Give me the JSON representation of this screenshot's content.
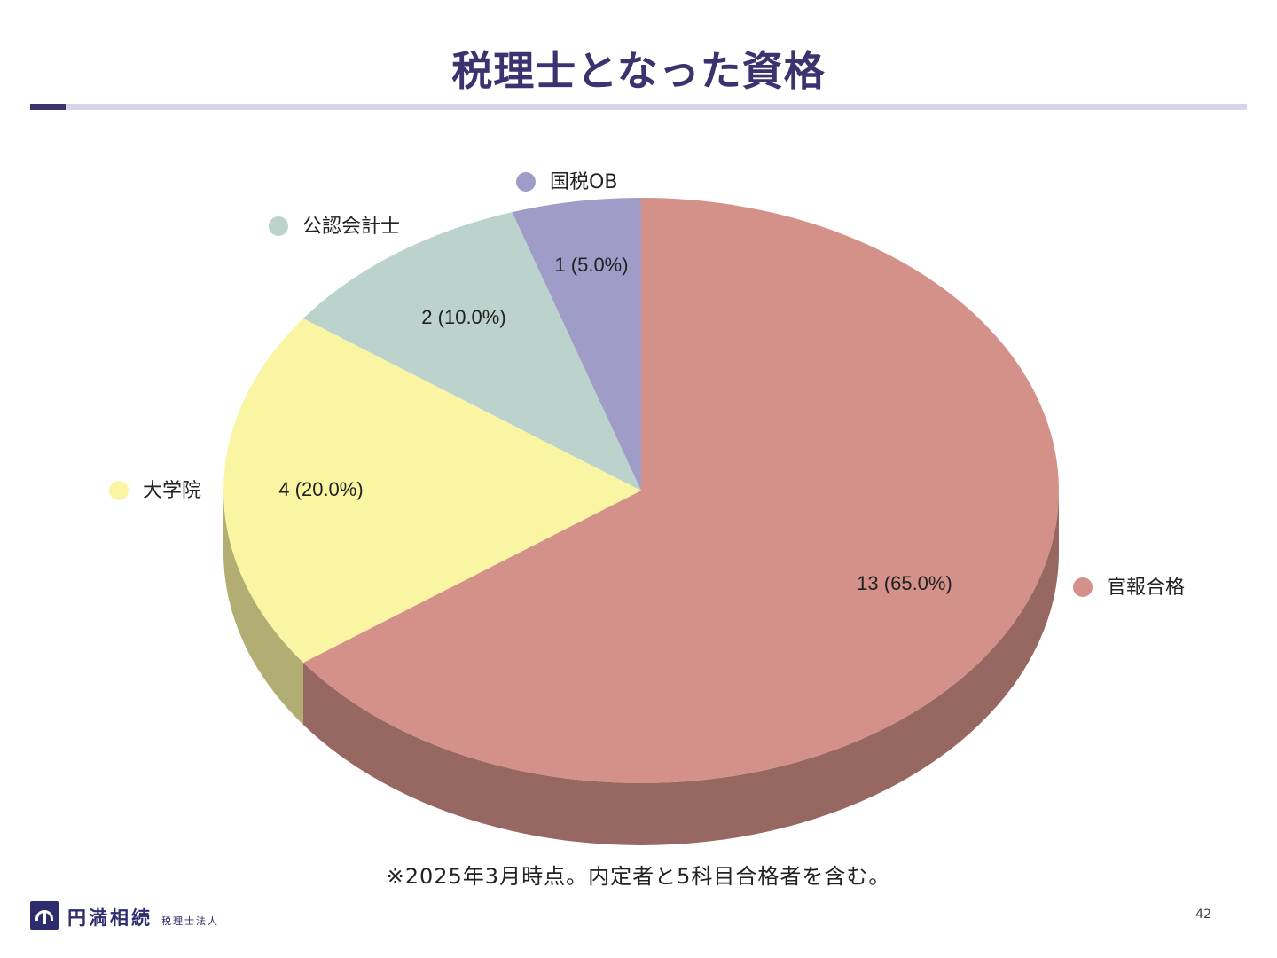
{
  "title": "税理士となった資格",
  "footnote": "※2025年3月時点。内定者と5科目合格者を含む。",
  "logo": {
    "name": "円満相続",
    "sub": "税理士法人"
  },
  "page_number": "42",
  "colors": {
    "title": "#3b3270",
    "rule": "#d9d4ea",
    "rule_accent": "#3b3270"
  },
  "chart_data": {
    "type": "pie",
    "style": "3d",
    "title": "",
    "legend": "labels beside slices",
    "slices": [
      {
        "name": "官報合格",
        "value": 13,
        "label": "13 (65.0%)",
        "color": "#d3918a",
        "side_color": "#976862"
      },
      {
        "name": "大学院",
        "value": 4,
        "label": "4 (20.0%)",
        "color": "#faf5a2",
        "side_color": "#b2ad72"
      },
      {
        "name": "公認会計士",
        "value": 2,
        "label": "2 (10.0%)",
        "color": "#bbd3cc",
        "side_color": "#8ba39c"
      },
      {
        "name": "国税OB",
        "value": 1,
        "label": "1 (5.0%)",
        "color": "#9f9cc8",
        "side_color": "#6f6c98"
      }
    ]
  }
}
